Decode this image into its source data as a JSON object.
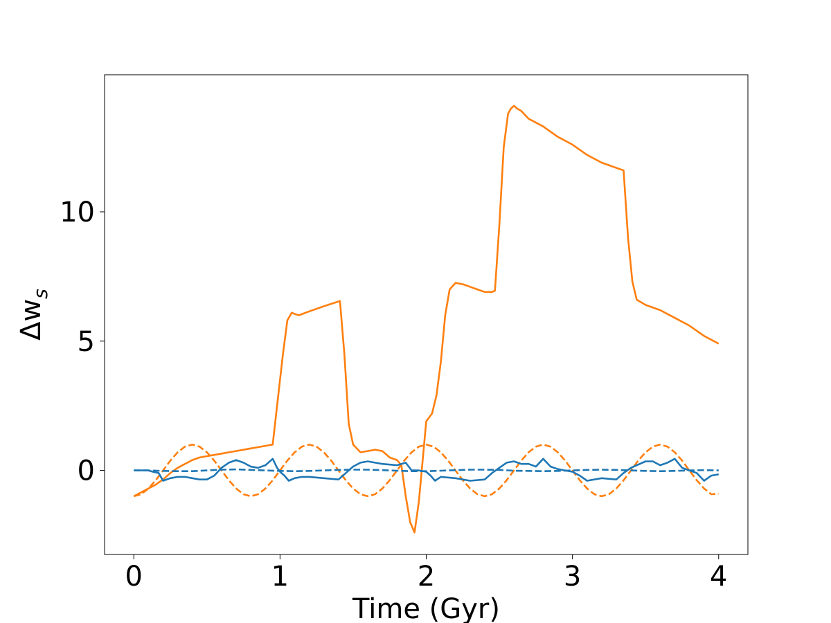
{
  "chart_data": {
    "type": "line",
    "title": "",
    "xlabel": "Time (Gyr)",
    "ylabel": "Δw",
    "ylabel_sub": "s",
    "xlim": [
      -0.2,
      4.2
    ],
    "ylim": [
      -3.25,
      15.3
    ],
    "grid": false,
    "legend": "none",
    "xticks": [
      0,
      1,
      2,
      3,
      4
    ],
    "xtick_labels": [
      "0",
      "1",
      "2",
      "3",
      "4"
    ],
    "yticks": [
      0,
      5,
      10
    ],
    "ytick_labels": [
      "0",
      "5",
      "10"
    ],
    "series": [
      {
        "color": "#ff7f0e",
        "dash": "solid",
        "x": [
          0.0,
          0.05,
          0.1,
          0.15,
          0.2,
          0.25,
          0.3,
          0.35,
          0.4,
          0.45,
          0.5,
          0.55,
          0.6,
          0.65,
          0.7,
          0.75,
          0.8,
          0.85,
          0.9,
          0.95,
          0.98,
          1.02,
          1.05,
          1.08,
          1.1,
          1.13,
          1.2,
          1.3,
          1.41,
          1.44,
          1.47,
          1.5,
          1.55,
          1.6,
          1.65,
          1.7,
          1.75,
          1.8,
          1.83,
          1.86,
          1.89,
          1.92,
          1.95,
          2.0,
          2.04,
          2.07,
          2.1,
          2.13,
          2.16,
          2.2,
          2.25,
          2.3,
          2.35,
          2.4,
          2.45,
          2.47,
          2.5,
          2.53,
          2.56,
          2.58,
          2.6,
          2.62,
          2.65,
          2.7,
          2.8,
          2.9,
          3.0,
          3.1,
          3.2,
          3.3,
          3.35,
          3.38,
          3.41,
          3.44,
          3.47,
          3.5,
          3.6,
          3.7,
          3.8,
          3.9,
          4.0
        ],
        "y": [
          -1.0,
          -0.85,
          -0.7,
          -0.55,
          -0.35,
          -0.1,
          0.1,
          0.25,
          0.4,
          0.5,
          0.55,
          0.6,
          0.65,
          0.7,
          0.75,
          0.8,
          0.85,
          0.9,
          0.95,
          1.0,
          2.5,
          4.5,
          5.8,
          6.1,
          6.05,
          6.0,
          6.15,
          6.35,
          6.55,
          4.5,
          1.8,
          1.0,
          0.7,
          0.75,
          0.8,
          0.75,
          0.5,
          0.4,
          0.2,
          -1.0,
          -2.0,
          -2.4,
          -1.2,
          1.9,
          2.2,
          2.9,
          4.2,
          6.0,
          7.0,
          7.25,
          7.2,
          7.1,
          7.0,
          6.9,
          6.9,
          6.95,
          9.5,
          12.5,
          13.8,
          14.0,
          14.1,
          14.0,
          13.9,
          13.6,
          13.3,
          12.9,
          12.6,
          12.2,
          11.9,
          11.7,
          11.6,
          9.0,
          7.3,
          6.6,
          6.5,
          6.4,
          6.2,
          5.9,
          5.6,
          5.2,
          4.9
        ]
      },
      {
        "color": "#ff7f0e",
        "dash": "dashed",
        "x": [
          0.0,
          0.05,
          0.1,
          0.15,
          0.2,
          0.25,
          0.3,
          0.35,
          0.4,
          0.45,
          0.5,
          0.55,
          0.6,
          0.65,
          0.7,
          0.75,
          0.8,
          0.85,
          0.9,
          0.95,
          1.0,
          1.05,
          1.1,
          1.15,
          1.2,
          1.25,
          1.3,
          1.35,
          1.4,
          1.45,
          1.5,
          1.55,
          1.6,
          1.65,
          1.7,
          1.75,
          1.8,
          1.85,
          1.9,
          1.95,
          2.0,
          2.05,
          2.1,
          2.15,
          2.2,
          2.25,
          2.3,
          2.35,
          2.4,
          2.45,
          2.5,
          2.55,
          2.6,
          2.65,
          2.7,
          2.75,
          2.8,
          2.85,
          2.9,
          2.95,
          3.0,
          3.05,
          3.1,
          3.15,
          3.2,
          3.25,
          3.3,
          3.35,
          3.4,
          3.45,
          3.5,
          3.55,
          3.6,
          3.65,
          3.7,
          3.75,
          3.8,
          3.85,
          3.9,
          3.95,
          4.0
        ],
        "y": [
          -1.0,
          -0.92,
          -0.7,
          -0.38,
          0.0,
          0.38,
          0.7,
          0.92,
          1.0,
          0.92,
          0.7,
          0.38,
          0.0,
          -0.38,
          -0.7,
          -0.92,
          -1.0,
          -0.92,
          -0.7,
          -0.38,
          0.0,
          0.38,
          0.7,
          0.92,
          1.0,
          0.92,
          0.7,
          0.38,
          0.0,
          -0.38,
          -0.7,
          -0.92,
          -1.0,
          -0.92,
          -0.7,
          -0.38,
          0.0,
          0.38,
          0.7,
          0.92,
          1.0,
          0.92,
          0.7,
          0.38,
          0.0,
          -0.38,
          -0.7,
          -0.92,
          -1.0,
          -0.92,
          -0.7,
          -0.38,
          0.0,
          0.38,
          0.7,
          0.92,
          1.0,
          0.92,
          0.7,
          0.38,
          0.0,
          -0.38,
          -0.7,
          -0.92,
          -1.0,
          -0.92,
          -0.7,
          -0.38,
          0.0,
          0.38,
          0.7,
          0.92,
          1.0,
          0.92,
          0.7,
          0.38,
          0.0,
          -0.38,
          -0.7,
          -0.92,
          -0.9
        ]
      },
      {
        "color": "#1f77b4",
        "dash": "solid",
        "x": [
          0.0,
          0.05,
          0.1,
          0.13,
          0.17,
          0.2,
          0.25,
          0.3,
          0.35,
          0.4,
          0.45,
          0.5,
          0.55,
          0.6,
          0.65,
          0.7,
          0.75,
          0.8,
          0.85,
          0.9,
          0.95,
          0.98,
          1.0,
          1.03,
          1.06,
          1.1,
          1.15,
          1.2,
          1.3,
          1.4,
          1.45,
          1.5,
          1.55,
          1.6,
          1.65,
          1.7,
          1.8,
          1.86,
          1.9,
          1.95,
          2.0,
          2.03,
          2.06,
          2.1,
          2.2,
          2.3,
          2.4,
          2.45,
          2.5,
          2.55,
          2.6,
          2.65,
          2.7,
          2.75,
          2.8,
          2.85,
          2.9,
          2.95,
          3.0,
          3.05,
          3.1,
          3.2,
          3.3,
          3.35,
          3.4,
          3.5,
          3.55,
          3.6,
          3.65,
          3.7,
          3.75,
          3.8,
          3.85,
          3.9,
          3.95,
          4.0
        ],
        "y": [
          0.0,
          0.0,
          0.0,
          -0.05,
          -0.1,
          -0.4,
          -0.3,
          -0.25,
          -0.25,
          -0.3,
          -0.35,
          -0.35,
          -0.2,
          0.1,
          0.3,
          0.4,
          0.3,
          0.15,
          0.1,
          0.2,
          0.45,
          0.1,
          -0.05,
          -0.2,
          -0.4,
          -0.3,
          -0.25,
          -0.25,
          -0.3,
          -0.35,
          -0.1,
          0.15,
          0.3,
          0.35,
          0.3,
          0.25,
          0.2,
          0.3,
          0.0,
          0.0,
          -0.05,
          -0.2,
          -0.4,
          -0.25,
          -0.3,
          -0.4,
          -0.35,
          -0.1,
          0.1,
          0.3,
          0.35,
          0.25,
          0.25,
          0.15,
          0.45,
          0.15,
          0.05,
          0.0,
          -0.05,
          -0.2,
          -0.4,
          -0.3,
          -0.35,
          -0.1,
          0.1,
          0.35,
          0.35,
          0.2,
          0.3,
          0.45,
          0.1,
          0.0,
          -0.1,
          -0.4,
          -0.2,
          -0.15
        ]
      },
      {
        "color": "#1f77b4",
        "dash": "dashed",
        "x": [
          0.0,
          0.1,
          0.2,
          0.3,
          0.4,
          0.5,
          0.6,
          0.7,
          0.8,
          0.9,
          1.0,
          1.1,
          1.2,
          1.3,
          1.4,
          1.5,
          1.6,
          1.7,
          1.8,
          1.9,
          2.0,
          2.1,
          2.2,
          2.3,
          2.4,
          2.5,
          2.6,
          2.7,
          2.8,
          2.9,
          3.0,
          3.1,
          3.2,
          3.3,
          3.4,
          3.5,
          3.6,
          3.7,
          3.8,
          3.9,
          4.0
        ],
        "y": [
          0.0,
          0.0,
          -0.02,
          -0.03,
          -0.03,
          0.0,
          0.03,
          0.04,
          0.02,
          0.0,
          -0.02,
          -0.03,
          -0.02,
          0.0,
          0.02,
          0.03,
          0.03,
          0.01,
          -0.01,
          -0.03,
          -0.03,
          -0.01,
          0.01,
          0.03,
          0.03,
          0.02,
          -0.01,
          -0.02,
          -0.03,
          -0.02,
          0.0,
          0.02,
          0.03,
          0.02,
          0.0,
          -0.02,
          -0.03,
          -0.02,
          0.0,
          0.01,
          0.0
        ]
      }
    ]
  }
}
